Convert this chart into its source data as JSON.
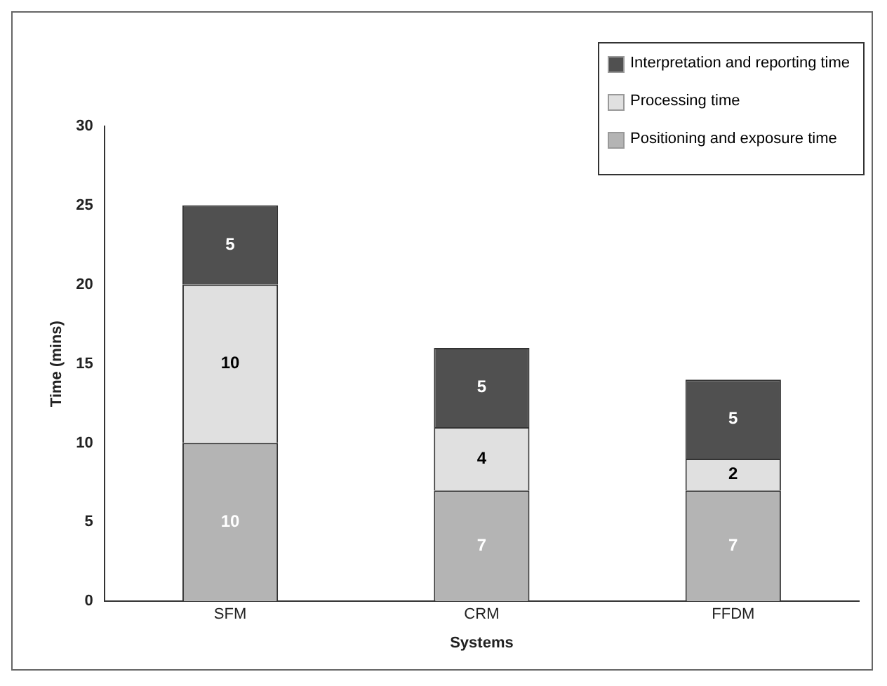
{
  "chart_data": {
    "type": "bar",
    "stacked": true,
    "xlabel": "Systems",
    "ylabel": "Time (mins)",
    "categories": [
      "SFM",
      "CRM",
      "FFDM"
    ],
    "series": [
      {
        "name": "Positioning and exposure time",
        "color": "#b4b4b4",
        "values": [
          10,
          7,
          7
        ]
      },
      {
        "name": "Processing time",
        "color": "#e0e0e0",
        "values": [
          10,
          4,
          2
        ]
      },
      {
        "name": "Interpretation and reporting time",
        "color": "#505050",
        "values": [
          5,
          5,
          5
        ]
      }
    ],
    "ylim": [
      0,
      30
    ],
    "yticks": [
      0,
      5,
      10,
      15,
      20,
      25,
      30
    ],
    "grid": false,
    "legend": "top right",
    "data_labels": true
  }
}
